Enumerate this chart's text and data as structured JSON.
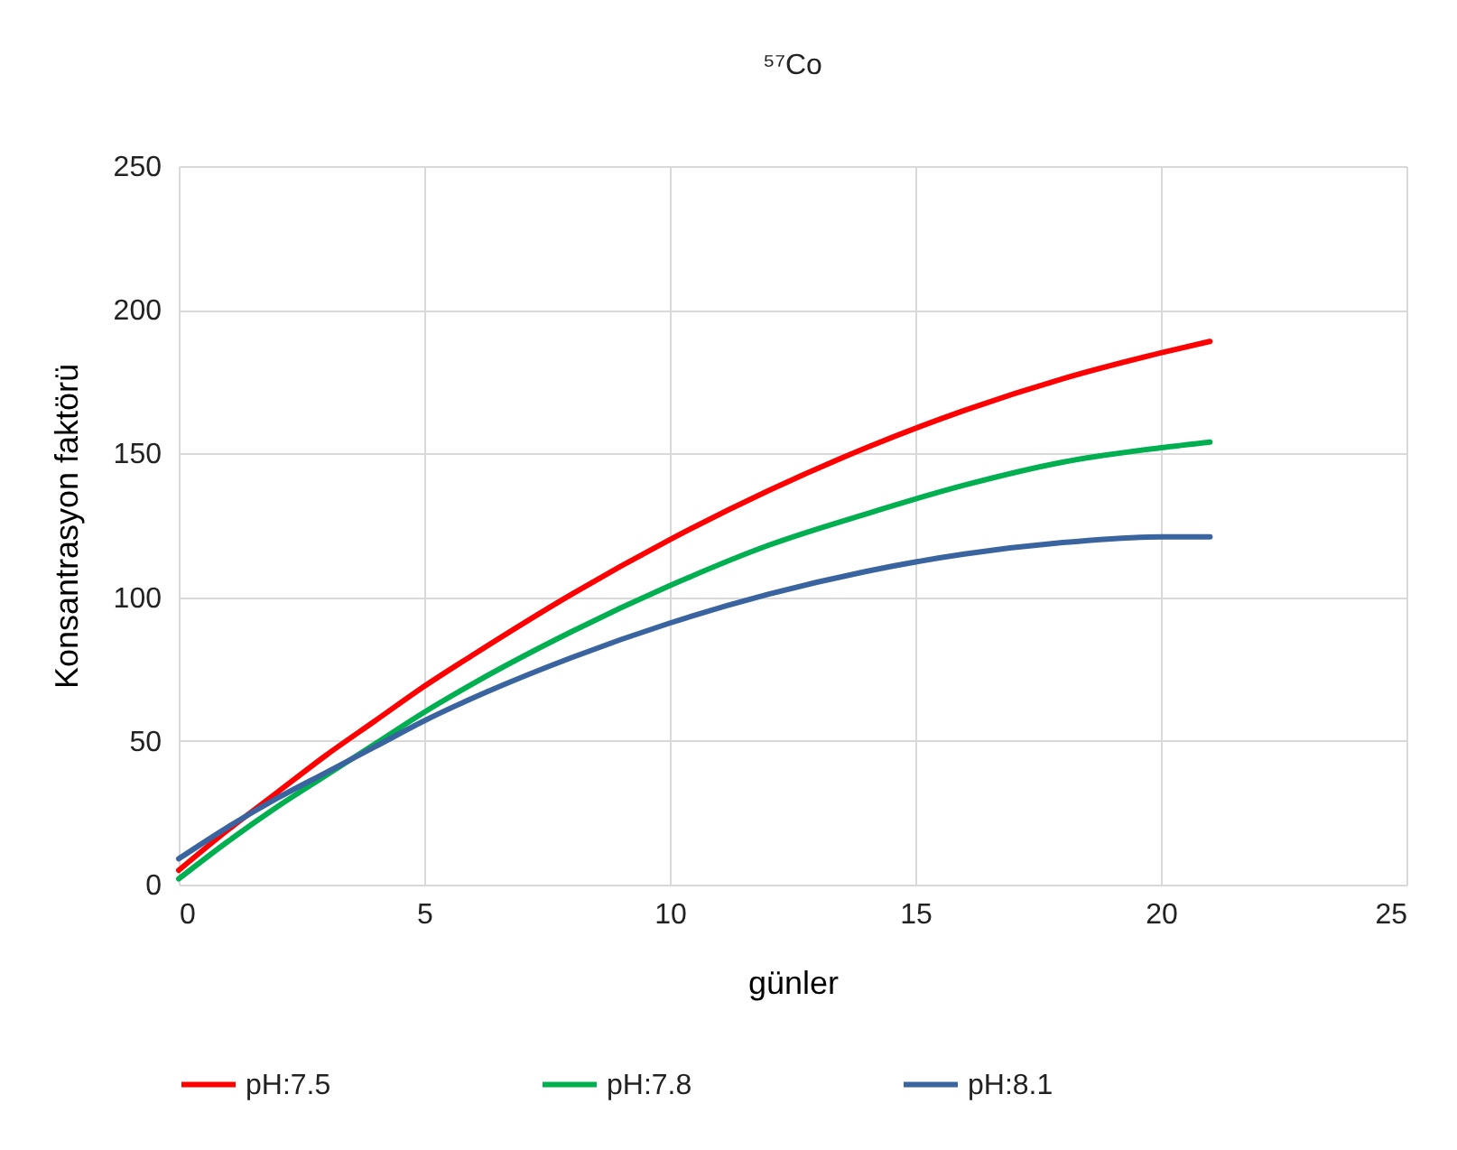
{
  "chart_data": {
    "type": "line",
    "title": "⁵⁷Co",
    "xlabel": "günler",
    "ylabel": "Konsantrasyon faktörü",
    "xlim": [
      0,
      25
    ],
    "xticks": [
      0,
      5,
      10,
      15,
      20,
      25
    ],
    "ylim": [
      0,
      250
    ],
    "yticks": [
      0,
      50,
      100,
      150,
      200,
      250
    ],
    "grid": true,
    "legend": "bottom",
    "marker": "none",
    "line_style": "solid",
    "x": [
      0,
      1,
      2,
      3,
      4,
      5,
      6,
      8,
      10,
      12,
      14,
      16,
      18,
      20,
      21
    ],
    "series": [
      {
        "name": "pH:7.5",
        "color": "#ff0000",
        "values": [
          5,
          19,
          32,
          45,
          57,
          69,
          80,
          101,
          120,
          137,
          152,
          165,
          176,
          185,
          189
        ]
      },
      {
        "name": "pH:7.8",
        "color": "#00b050",
        "values": [
          2,
          15,
          27,
          38,
          49,
          60,
          70,
          88,
          104,
          118,
          129,
          139,
          147,
          152,
          154
        ]
      },
      {
        "name": "pH:8.1",
        "color": "#3a64a0",
        "values": [
          9,
          20,
          30,
          39,
          48,
          57,
          65,
          79,
          91,
          101,
          109,
          115,
          119,
          121,
          121
        ]
      }
    ]
  }
}
